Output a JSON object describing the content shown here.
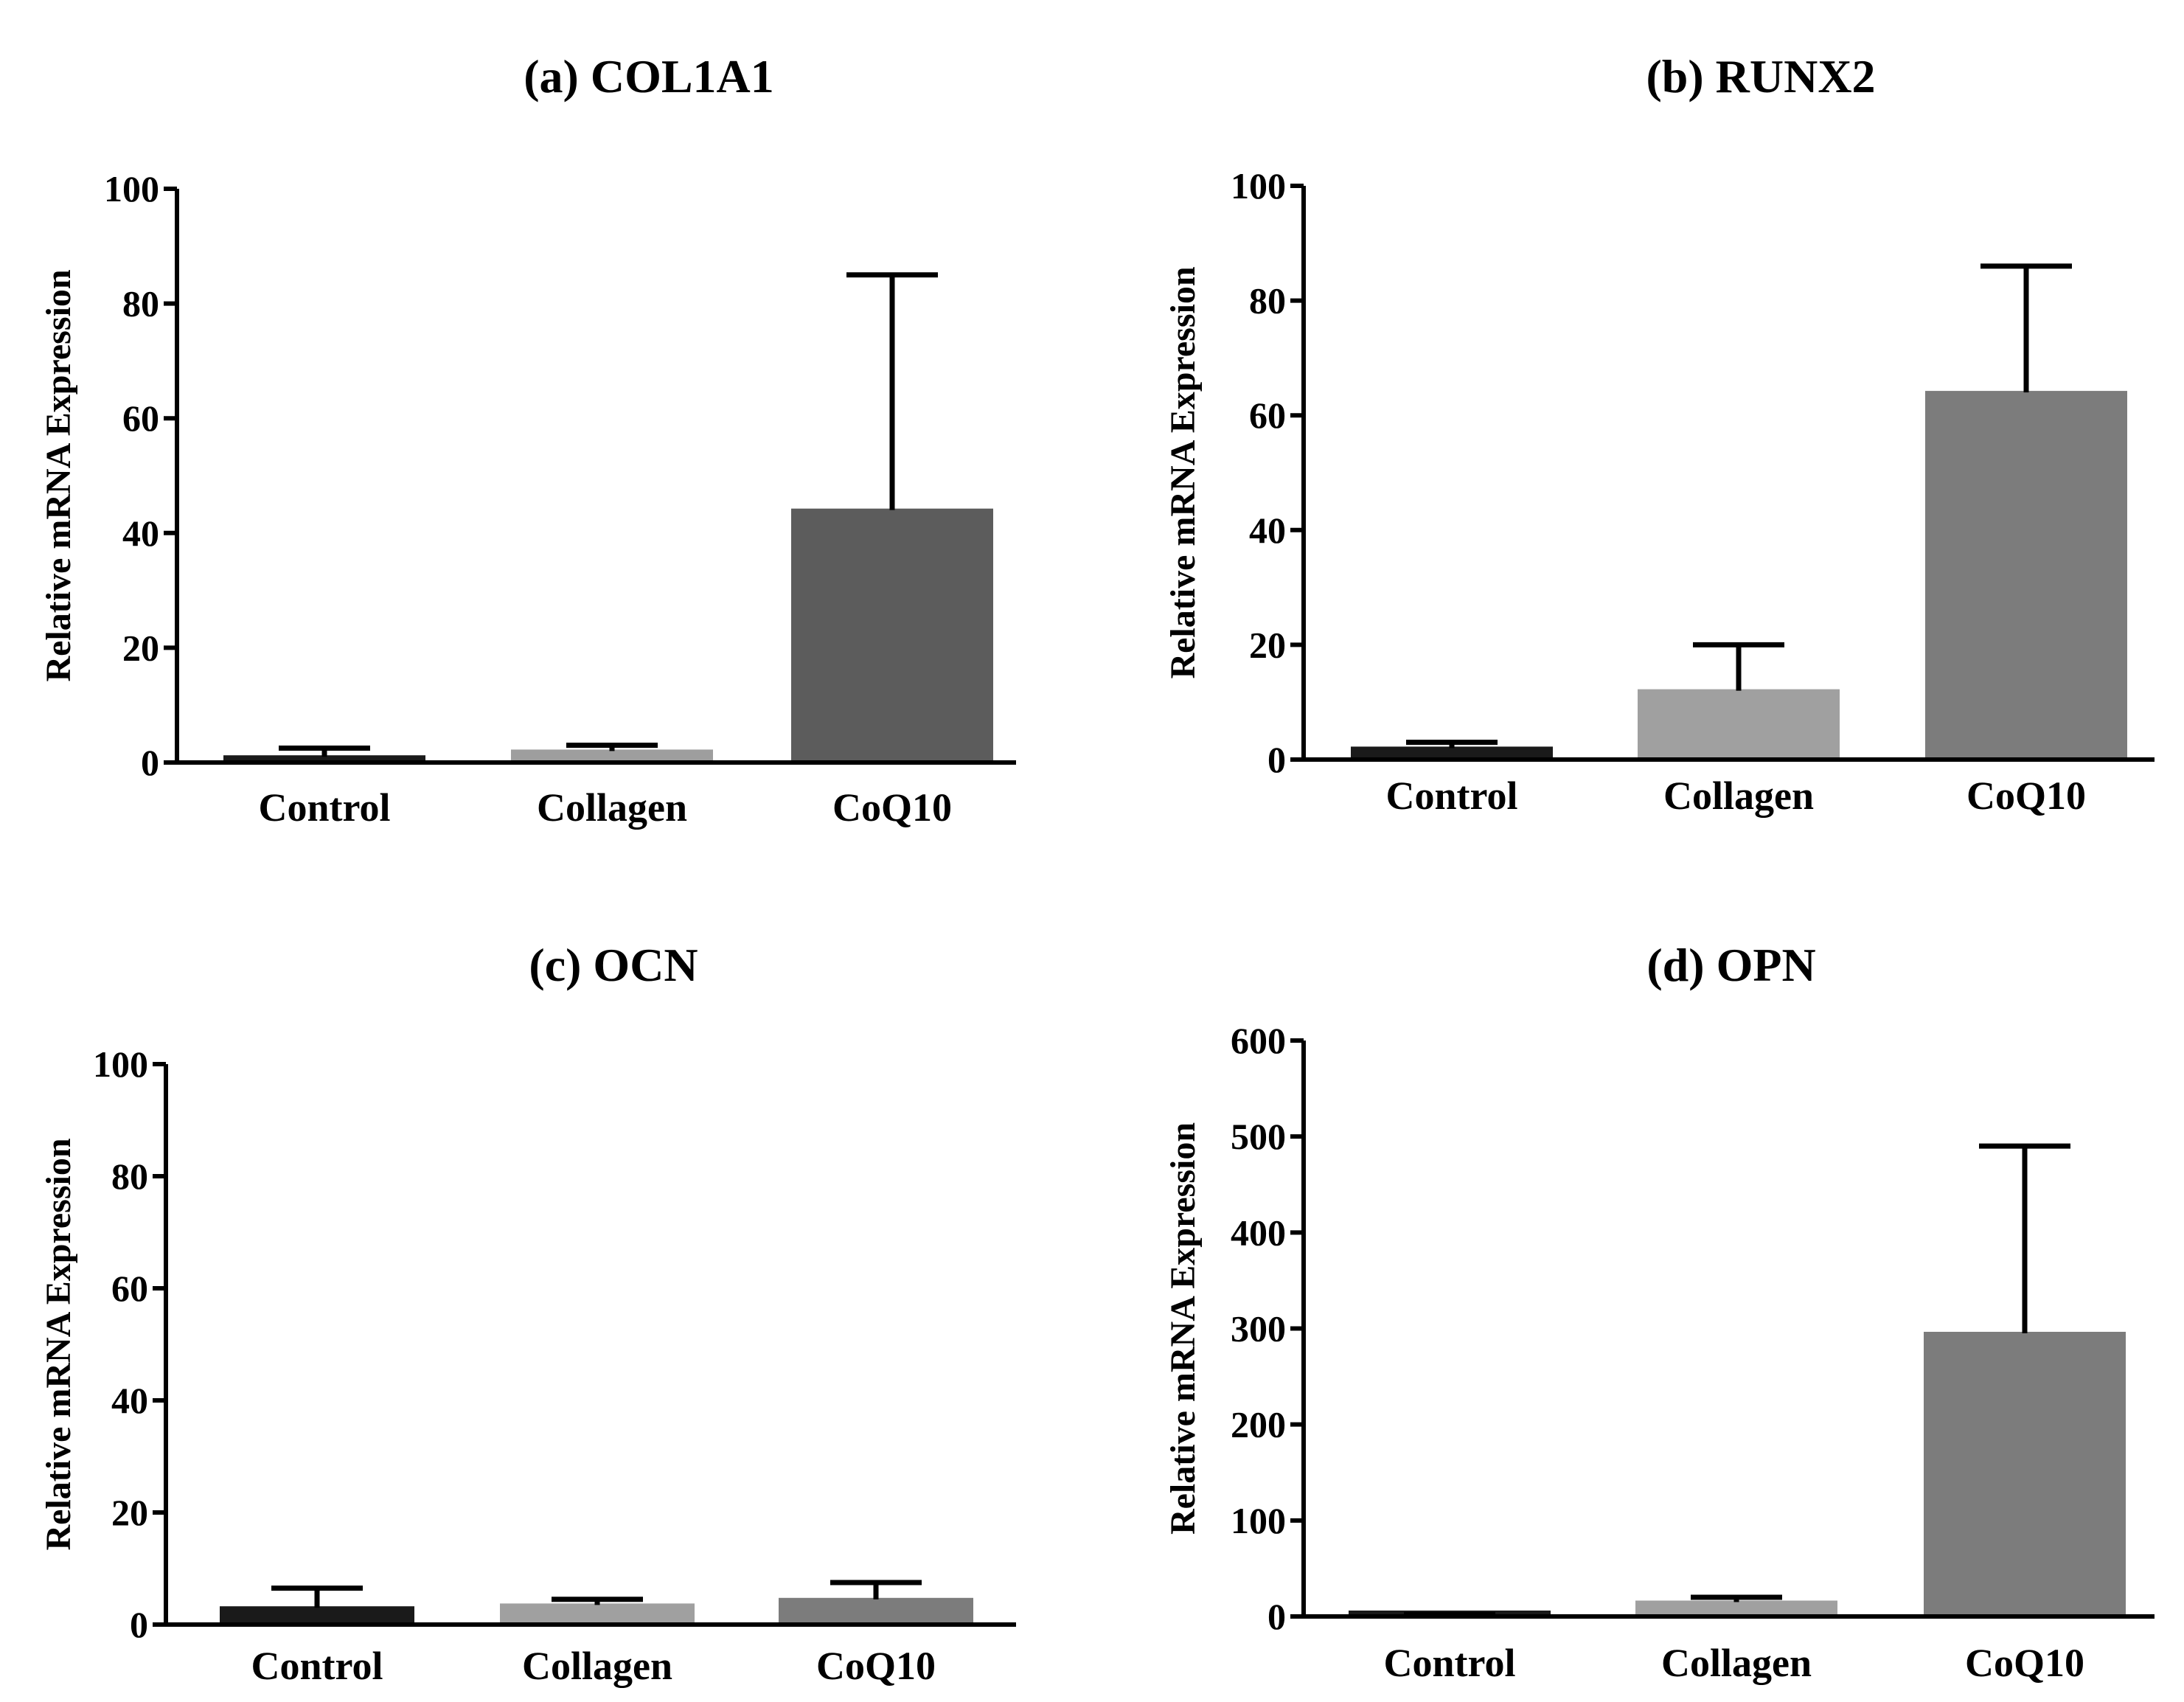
{
  "chart_data": [
    {
      "type": "bar",
      "title": "(a) COL1A1",
      "xlabel": "",
      "ylabel": "Relative mRNA Expression",
      "categories": [
        "Control",
        "Collagen",
        "CoQ10"
      ],
      "values": [
        1,
        2,
        44
      ],
      "errors": [
        1.5,
        1,
        41
      ],
      "ylim": [
        0,
        100
      ],
      "yticks": [
        0,
        20,
        40,
        60,
        80,
        100
      ],
      "colors": [
        "#1a1a1a",
        "#9e9e9e",
        "#5c5c5c"
      ],
      "grid": false
    },
    {
      "type": "bar",
      "title": "(b) RUNX2",
      "xlabel": "",
      "ylabel": "Relative mRNA Expression",
      "categories": [
        "Control",
        "Collagen",
        "CoQ10"
      ],
      "values": [
        2,
        12,
        64
      ],
      "errors": [
        1,
        8,
        22
      ],
      "ylim": [
        0,
        100
      ],
      "yticks": [
        0,
        20,
        40,
        60,
        80,
        100
      ],
      "colors": [
        "#1a1a1a",
        "#a0a0a0",
        "#7c7c7c"
      ],
      "grid": false
    },
    {
      "type": "bar",
      "title": "(c) OCN",
      "xlabel": "",
      "ylabel": "Relative mRNA Expression",
      "categories": [
        "Control",
        "Collagen",
        "CoQ10"
      ],
      "values": [
        3,
        3.5,
        4.5
      ],
      "errors": [
        3.5,
        1,
        3
      ],
      "ylim": [
        0,
        100
      ],
      "yticks": [
        0,
        20,
        40,
        60,
        80,
        100
      ],
      "colors": [
        "#1a1a1a",
        "#a0a0a0",
        "#7c7c7c"
      ],
      "grid": false
    },
    {
      "type": "bar",
      "title": "(d) OPN",
      "xlabel": "",
      "ylabel": "Relative mRNA Expression",
      "categories": [
        "Control",
        "Collagen",
        "CoQ10"
      ],
      "values": [
        1,
        15,
        295
      ],
      "errors": [
        1,
        5,
        195
      ],
      "ylim": [
        0,
        600
      ],
      "yticks": [
        0,
        100,
        200,
        300,
        400,
        500,
        600
      ],
      "colors": [
        "#1a1a1a",
        "#a0a0a0",
        "#7c7c7c"
      ],
      "grid": false
    }
  ]
}
